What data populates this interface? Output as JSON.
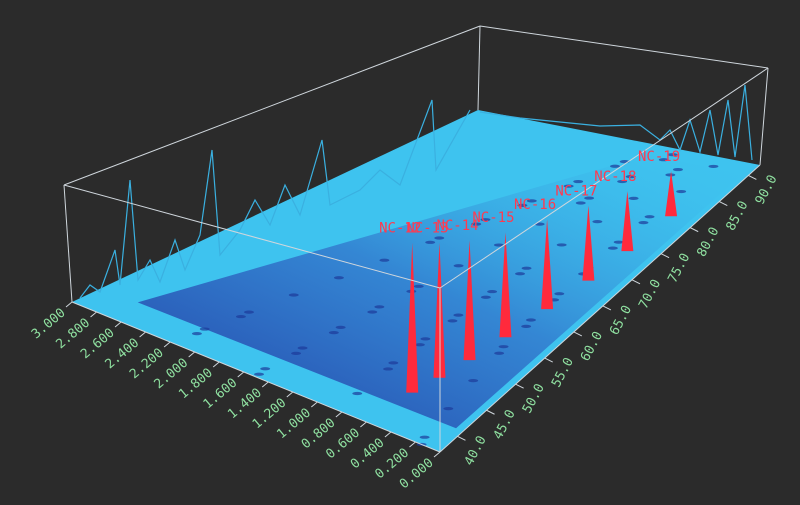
{
  "chart_data": {
    "type": "surface3d",
    "xlim": [
      37,
      92
    ],
    "xticks": [
      {
        "value": 40,
        "label": "40.0"
      },
      {
        "value": 45,
        "label": "45.0"
      },
      {
        "value": 50,
        "label": "50.0"
      },
      {
        "value": 55,
        "label": "55.0"
      },
      {
        "value": 60,
        "label": "60.0"
      },
      {
        "value": 65,
        "label": "65.0"
      },
      {
        "value": 70,
        "label": "70.0"
      },
      {
        "value": 75,
        "label": "75.0"
      },
      {
        "value": 80,
        "label": "80.0"
      },
      {
        "value": 85,
        "label": "85.0"
      },
      {
        "value": 90,
        "label": "90.0"
      }
    ],
    "ylim": [
      0,
      3
    ],
    "yticks": [
      {
        "value": 0,
        "label": "0.000"
      },
      {
        "value": 0.2,
        "label": "0.200"
      },
      {
        "value": 0.4,
        "label": "0.400"
      },
      {
        "value": 0.6,
        "label": "0.600"
      },
      {
        "value": 0.8,
        "label": "0.800"
      },
      {
        "value": 1,
        "label": "1.000"
      },
      {
        "value": 1.2,
        "label": "1.200"
      },
      {
        "value": 1.4,
        "label": "1.400"
      },
      {
        "value": 1.6,
        "label": "1.600"
      },
      {
        "value": 1.8,
        "label": "1.800"
      },
      {
        "value": 2,
        "label": "2.000"
      },
      {
        "value": 2.2,
        "label": "2.200"
      },
      {
        "value": 2.4,
        "label": "2.400"
      },
      {
        "value": 2.6,
        "label": "2.600"
      },
      {
        "value": 2.8,
        "label": "2.800"
      },
      {
        "value": 3,
        "label": "3.000"
      }
    ],
    "peaks": {
      "labels": [
        "NC-12",
        "NC-13",
        "NC-14",
        "NC-15",
        "NC-16",
        "NC-17",
        "NC-18",
        "NC-19"
      ],
      "x": [
        43.5,
        47,
        51,
        56,
        62,
        68,
        74,
        81
      ],
      "y": [
        0.55,
        0.5,
        0.45,
        0.4,
        0.35,
        0.3,
        0.27,
        0.25
      ]
    },
    "color": "#ff2a3c"
  }
}
